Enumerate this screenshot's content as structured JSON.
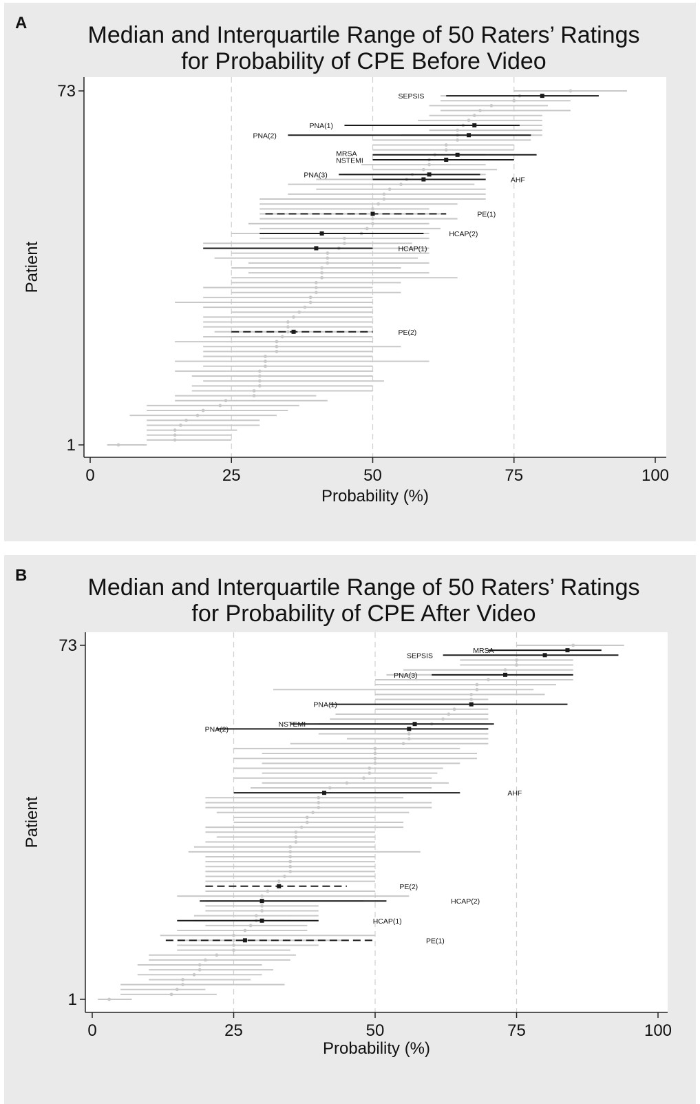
{
  "chart_data": [
    {
      "type": "scatter",
      "panel_letter": "A",
      "title_lines": [
        "Median and Interquartile Range of 50 Raters’ Ratings",
        "for Probability of CPE Before Video"
      ],
      "xlabel": "Probability (%)",
      "ylabel": "Patient",
      "xlim": [
        0,
        100
      ],
      "ylim": [
        1,
        73
      ],
      "x_ticks": [
        0,
        25,
        50,
        75,
        100
      ],
      "y_ticks": [
        1,
        73
      ],
      "grid": "vertical dashed at 25, 50, 75",
      "series": [
        {
          "style": "gray",
          "points": [
            [
              73,
              85,
              75,
              95
            ],
            [
              72,
              76,
              62,
              85
            ],
            [
              71,
              75,
              62,
              85
            ],
            [
              70,
              71,
              60,
              81
            ],
            [
              69,
              69,
              62,
              85
            ],
            [
              68,
              68,
              60,
              80
            ],
            [
              67,
              67,
              58,
              80
            ],
            [
              66,
              66,
              60,
              80
            ],
            [
              65,
              65,
              60,
              80
            ],
            [
              64,
              65,
              55,
              80
            ],
            [
              63,
              65,
              50,
              78
            ],
            [
              62,
              63,
              50,
              75
            ],
            [
              61,
              63,
              50,
              75
            ],
            [
              60,
              61,
              50,
              70
            ],
            [
              59,
              60,
              50,
              70
            ],
            [
              58,
              60,
              48,
              70
            ],
            [
              57,
              59,
              50,
              72
            ],
            [
              56,
              57,
              45,
              70
            ],
            [
              55,
              56,
              40,
              68
            ],
            [
              54,
              55,
              35,
              68
            ],
            [
              53,
              53,
              40,
              70
            ],
            [
              52,
              52,
              35,
              70
            ],
            [
              51,
              52,
              30,
              70
            ],
            [
              50,
              51,
              30,
              65
            ],
            [
              49,
              50,
              30,
              60
            ],
            [
              48,
              50,
              30,
              62
            ],
            [
              47,
              50,
              30,
              65
            ],
            [
              46,
              50,
              28,
              60
            ],
            [
              45,
              49,
              30,
              62
            ],
            [
              44,
              48,
              25,
              60
            ],
            [
              43,
              45,
              30,
              60
            ],
            [
              42,
              45,
              20,
              57
            ],
            [
              41,
              44,
              25,
              60
            ],
            [
              40,
              42,
              25,
              60
            ],
            [
              39,
              42,
              22,
              58
            ],
            [
              38,
              42,
              28,
              60
            ],
            [
              37,
              41,
              25,
              55
            ],
            [
              36,
              41,
              28,
              60
            ],
            [
              35,
              41,
              25,
              65
            ],
            [
              34,
              40,
              25,
              55
            ],
            [
              33,
              40,
              20,
              50
            ],
            [
              32,
              40,
              25,
              55
            ],
            [
              31,
              39,
              20,
              50
            ],
            [
              30,
              39,
              15,
              50
            ],
            [
              29,
              38,
              20,
              50
            ],
            [
              28,
              37,
              25,
              50
            ],
            [
              27,
              36,
              20,
              50
            ],
            [
              26,
              35,
              20,
              50
            ],
            [
              25,
              35,
              20,
              50
            ],
            [
              24,
              35,
              22,
              50
            ],
            [
              23,
              34,
              20,
              50
            ],
            [
              22,
              33,
              15,
              50
            ],
            [
              21,
              33,
              20,
              55
            ],
            [
              20,
              33,
              20,
              50
            ],
            [
              19,
              31,
              20,
              50
            ],
            [
              18,
              31,
              15,
              60
            ],
            [
              17,
              31,
              20,
              50
            ],
            [
              16,
              30,
              15,
              50
            ],
            [
              15,
              30,
              18,
              50
            ],
            [
              14,
              30,
              20,
              52
            ],
            [
              13,
              30,
              18,
              50
            ],
            [
              12,
              29,
              18,
              50
            ],
            [
              11,
              29,
              15,
              40
            ],
            [
              10,
              24,
              15,
              42
            ],
            [
              9,
              23,
              10,
              37
            ],
            [
              8,
              20,
              10,
              35
            ],
            [
              7,
              19,
              7,
              33
            ],
            [
              6,
              17,
              10,
              30
            ],
            [
              5,
              16,
              10,
              30
            ],
            [
              4,
              15,
              10,
              26
            ],
            [
              3,
              15,
              10,
              25
            ],
            [
              2,
              15,
              10,
              25
            ],
            [
              1,
              5,
              3,
              10
            ]
          ]
        },
        {
          "style": "solid",
          "points": [
            [
              72,
              80,
              63,
              90
            ],
            [
              66,
              68,
              45,
              76
            ],
            [
              64,
              67,
              35,
              78
            ],
            [
              60,
              65,
              50,
              79
            ],
            [
              59,
              63,
              50,
              75
            ],
            [
              56,
              60,
              44,
              69
            ],
            [
              55,
              59,
              50,
              70
            ],
            [
              44,
              41,
              30,
              59
            ],
            [
              41,
              40,
              20,
              50
            ]
          ]
        },
        {
          "style": "dashed",
          "points": [
            [
              48,
              50,
              31,
              63
            ],
            [
              24,
              36,
              25,
              50
            ]
          ]
        }
      ],
      "annotations": [
        {
          "text": "SEPSIS",
          "x": 54.5,
          "y": 72
        },
        {
          "text": "PNA(1)",
          "x": 38.8,
          "y": 66
        },
        {
          "text": "PNA(2)",
          "x": 28.8,
          "y": 64
        },
        {
          "text": "MRSA",
          "x": 43.5,
          "y": 60.3
        },
        {
          "text": "NSTEMI",
          "x": 43.5,
          "y": 58.9
        },
        {
          "text": "PNA(3)",
          "x": 37.8,
          "y": 56
        },
        {
          "text": "AHF",
          "x": 74.4,
          "y": 55
        },
        {
          "text": "PE(1)",
          "x": 68.5,
          "y": 48
        },
        {
          "text": "HCAP(2)",
          "x": 63.5,
          "y": 44
        },
        {
          "text": "HCAP(1)",
          "x": 54.5,
          "y": 41
        },
        {
          "text": "PE(2)",
          "x": 54.5,
          "y": 24
        }
      ]
    },
    {
      "type": "scatter",
      "panel_letter": "B",
      "title_lines": [
        "Median and Interquartile Range of 50 Raters’ Ratings",
        "for Probability of CPE After Video"
      ],
      "xlabel": "Probability (%)",
      "ylabel": "Patient",
      "xlim": [
        0,
        100
      ],
      "ylim": [
        1,
        73
      ],
      "x_ticks": [
        0,
        25,
        50,
        75,
        100
      ],
      "y_ticks": [
        1,
        73
      ],
      "grid": "vertical dashed at 25, 50, 75",
      "series": [
        {
          "style": "gray",
          "points": [
            [
              73,
              85,
              75,
              94
            ],
            [
              70,
              75,
              65,
              85
            ],
            [
              69,
              75,
              65,
              85
            ],
            [
              68,
              73,
              55,
              85
            ],
            [
              67,
              73,
              52,
              85
            ],
            [
              66,
              70,
              50,
              85
            ],
            [
              65,
              68,
              50,
              82
            ],
            [
              64,
              68,
              32,
              78
            ],
            [
              63,
              67,
              50,
              80
            ],
            [
              62,
              67,
              50,
              70
            ],
            [
              61,
              67,
              50,
              70
            ],
            [
              60,
              64,
              50,
              70
            ],
            [
              59,
              63,
              43,
              70
            ],
            [
              58,
              62,
              42,
              70
            ],
            [
              57,
              60,
              40,
              70
            ],
            [
              55,
              56,
              40,
              70
            ],
            [
              54,
              56,
              45,
              70
            ],
            [
              53,
              55,
              35,
              70
            ],
            [
              52,
              50,
              25,
              65
            ],
            [
              51,
              50,
              30,
              68
            ],
            [
              50,
              50,
              25,
              68
            ],
            [
              49,
              50,
              30,
              65
            ],
            [
              48,
              49,
              25,
              62
            ],
            [
              47,
              49,
              30,
              61
            ],
            [
              46,
              48,
              25,
              60
            ],
            [
              45,
              45,
              30,
              63
            ],
            [
              44,
              42,
              28,
              60
            ],
            [
              42,
              40,
              20,
              55
            ],
            [
              41,
              40,
              20,
              60
            ],
            [
              40,
              40,
              20,
              60
            ],
            [
              39,
              39,
              22,
              56
            ],
            [
              38,
              38,
              25,
              50
            ],
            [
              37,
              38,
              25,
              55
            ],
            [
              36,
              37,
              20,
              55
            ],
            [
              35,
              36,
              20,
              50
            ],
            [
              34,
              36,
              22,
              50
            ],
            [
              33,
              36,
              20,
              50
            ],
            [
              32,
              35,
              18,
              50
            ],
            [
              31,
              35,
              17,
              58
            ],
            [
              30,
              35,
              20,
              50
            ],
            [
              29,
              35,
              20,
              50
            ],
            [
              28,
              35,
              20,
              50
            ],
            [
              27,
              35,
              20,
              50
            ],
            [
              26,
              34,
              20,
              50
            ],
            [
              25,
              33,
              20,
              50
            ],
            [
              23,
              31,
              20,
              50
            ],
            [
              22,
              30,
              15,
              56
            ],
            [
              21,
              30,
              20,
              48
            ],
            [
              20,
              30,
              20,
              40
            ],
            [
              19,
              30,
              20,
              40
            ],
            [
              18,
              29,
              18,
              40
            ],
            [
              17,
              29,
              18,
              35
            ],
            [
              16,
              28,
              20,
              38
            ],
            [
              15,
              27,
              15,
              38
            ],
            [
              14,
              25,
              12,
              50
            ],
            [
              13,
              25,
              15,
              45
            ],
            [
              12,
              25,
              15,
              40
            ],
            [
              11,
              25,
              15,
              35
            ],
            [
              10,
              22,
              10,
              36
            ],
            [
              9,
              20,
              10,
              35
            ],
            [
              8,
              19,
              8,
              30
            ],
            [
              7,
              19,
              10,
              32
            ],
            [
              6,
              18,
              8,
              30
            ],
            [
              5,
              16,
              10,
              28
            ],
            [
              4,
              16,
              5,
              34
            ],
            [
              3,
              15,
              5,
              20
            ],
            [
              2,
              14,
              5,
              22
            ],
            [
              1,
              3,
              1,
              7
            ]
          ]
        },
        {
          "style": "solid",
          "points": [
            [
              72,
              84,
              70,
              90
            ],
            [
              71,
              80,
              62,
              93
            ],
            [
              67,
              73,
              60,
              85
            ],
            [
              61,
              67,
              42,
              84
            ],
            [
              57,
              57,
              35,
              71
            ],
            [
              56,
              56,
              22,
              70
            ],
            [
              43,
              41,
              25,
              65
            ],
            [
              21,
              30,
              19,
              52
            ],
            [
              17,
              30,
              15,
              40
            ]
          ]
        },
        {
          "style": "dashed",
          "points": [
            [
              24,
              33,
              20,
              45
            ],
            [
              13,
              27,
              13,
              50
            ]
          ]
        }
      ],
      "annotations": [
        {
          "text": "MRSA",
          "x": 67.3,
          "y": 72
        },
        {
          "text": "SEPSIS",
          "x": 55.6,
          "y": 71
        },
        {
          "text": "PNA(3)",
          "x": 53.3,
          "y": 67
        },
        {
          "text": "PNA(1)",
          "x": 39.1,
          "y": 61
        },
        {
          "text": "NSTEMI",
          "x": 32.9,
          "y": 57
        },
        {
          "text": "PNA(2)",
          "x": 19.9,
          "y": 56
        },
        {
          "text": "AHF",
          "x": 73.4,
          "y": 43
        },
        {
          "text": "PE(2)",
          "x": 54.3,
          "y": 24
        },
        {
          "text": "HCAP(2)",
          "x": 63.4,
          "y": 21
        },
        {
          "text": "HCAP(1)",
          "x": 49.6,
          "y": 17
        },
        {
          "text": "PE(1)",
          "x": 59.0,
          "y": 13
        }
      ]
    }
  ]
}
